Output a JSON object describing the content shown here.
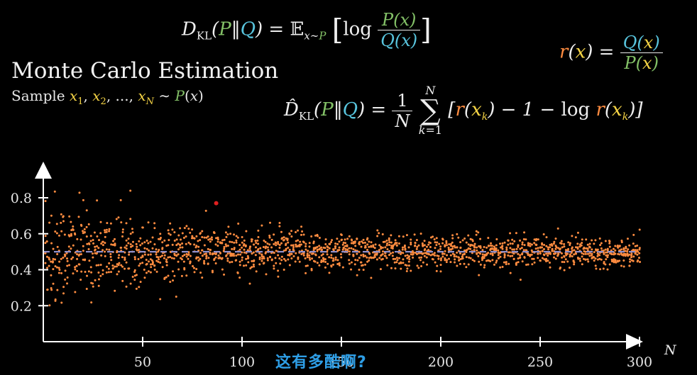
{
  "formulas": {
    "kl_def": "D_KL(P‖Q) = 𝔼_{x∼P}[log P(x)/Q(x)]",
    "ratio": "r(x) = Q(x)/P(x)",
    "estimator": "D̂_KL(P‖Q) = 1/N Σ_{k=1}^{N} [r(x_k) − 1 − log r(x_k)]"
  },
  "heading": {
    "title": "Monte Carlo Estimation",
    "sample_text": "Sample"
  },
  "caption": "这有多酷啊?",
  "colors": {
    "background": "#000000",
    "points": "#ff8c40",
    "highlight_point": "#e02020",
    "reference_line": "#8e8ec8",
    "axis": "#ffffff",
    "P": "#83c167",
    "Q": "#58c4dd",
    "x": "#f4d345",
    "r": "#ff8c40"
  },
  "chart_data": {
    "type": "scatter",
    "xlabel": "N",
    "ylabel": "",
    "xlim": [
      0,
      300
    ],
    "ylim": [
      0,
      1.0
    ],
    "x_ticks": [
      50,
      100,
      150,
      200,
      250,
      300
    ],
    "y_ticks": [
      0.2,
      0.4,
      0.6,
      0.8
    ],
    "reference_value": 0.5,
    "highlight_point": {
      "x": 87,
      "y": 0.77
    },
    "points_per_N": 6,
    "spread_by_N": [
      {
        "N": 1,
        "spread": 0.45
      },
      {
        "N": 10,
        "spread": 0.3
      },
      {
        "N": 50,
        "spread": 0.18
      },
      {
        "N": 100,
        "spread": 0.14
      },
      {
        "N": 200,
        "spread": 0.1
      },
      {
        "N": 300,
        "spread": 0.08
      }
    ]
  }
}
